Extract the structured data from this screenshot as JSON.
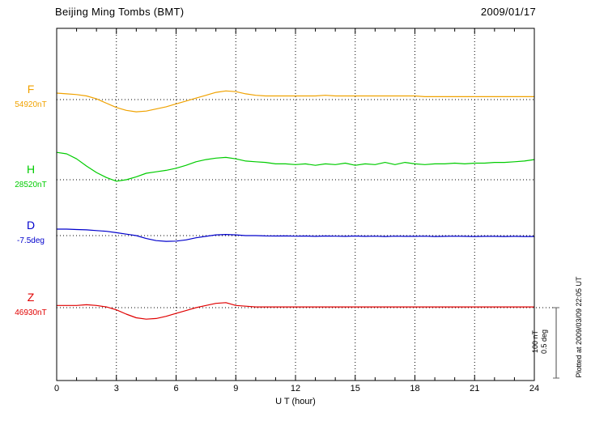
{
  "header": {
    "station": "Beijing Ming Tombs (BMT)",
    "date": "2009/01/17"
  },
  "x_axis": {
    "label": "U T (hour)"
  },
  "scale_bar": {
    "line1": "100 nT",
    "line2": "0.5 deg"
  },
  "footer": {
    "plotted_at": "Plotted at 2009/03/09 22:05 UT"
  },
  "chart_data": {
    "type": "line",
    "title": "Beijing Ming Tombs (BMT)",
    "subtitle": "2009/01/17",
    "xlabel": "U T (hour)",
    "x_range": [
      0,
      24
    ],
    "x_ticks": [
      0,
      3,
      6,
      9,
      12,
      15,
      18,
      21,
      24
    ],
    "x_step_hours": 0.5,
    "grid": "dotted vertical lines every 3 hours; dotted horizontal baseline per channel",
    "legend": "none",
    "scale": {
      "bar_nT": 100,
      "bar_deg": 0.5
    },
    "series": [
      {
        "name": "F",
        "unit": "nT",
        "baseline": 54920,
        "baseline_label": "54920nT",
        "color": "#f0a200",
        "offsets": [
          9,
          8,
          7,
          5,
          1,
          -5,
          -11,
          -15,
          -17,
          -16,
          -13,
          -10,
          -6,
          -2,
          2,
          6,
          10,
          12,
          11,
          8,
          6,
          5,
          5,
          5,
          5,
          5,
          5,
          6,
          5,
          5,
          5,
          5,
          5,
          5,
          5,
          5,
          5,
          4,
          4,
          4,
          4,
          4,
          4,
          4,
          4,
          4,
          4,
          4,
          4
        ]
      },
      {
        "name": "H",
        "unit": "nT",
        "baseline": 28520,
        "baseline_label": "28520nT",
        "color": "#00cc00",
        "offsets": [
          38,
          36,
          29,
          19,
          10,
          3,
          -2,
          0,
          4,
          9,
          11,
          13,
          16,
          20,
          25,
          28,
          30,
          31,
          29,
          26,
          25,
          24,
          22,
          22,
          21,
          22,
          20,
          22,
          21,
          23,
          20,
          22,
          21,
          24,
          21,
          24,
          22,
          21,
          22,
          22,
          23,
          22,
          23,
          23,
          24,
          24,
          25,
          26,
          28
        ]
      },
      {
        "name": "D",
        "unit": "deg",
        "baseline": -7.5,
        "baseline_label": "-7.5deg",
        "color": "#0000cc",
        "offsets": [
          0.045,
          0.045,
          0.042,
          0.04,
          0.035,
          0.03,
          0.02,
          0.01,
          0.0,
          -0.02,
          -0.035,
          -0.04,
          -0.038,
          -0.03,
          -0.015,
          -0.005,
          0.005,
          0.008,
          0.005,
          0.0,
          0.0,
          -0.002,
          -0.003,
          -0.002,
          -0.004,
          -0.003,
          -0.005,
          -0.003,
          -0.004,
          -0.005,
          -0.003,
          -0.005,
          -0.004,
          -0.006,
          -0.004,
          -0.005,
          -0.005,
          -0.004,
          -0.006,
          -0.005,
          -0.004,
          -0.005,
          -0.006,
          -0.005,
          -0.005,
          -0.006,
          -0.005,
          -0.006,
          -0.006
        ]
      },
      {
        "name": "Z",
        "unit": "nT",
        "baseline": 46930,
        "baseline_label": "46930nT",
        "color": "#e00000",
        "offsets": [
          3,
          3,
          3,
          4,
          3,
          1,
          -3,
          -9,
          -14,
          -16,
          -15,
          -12,
          -8,
          -4,
          0,
          3,
          6,
          7,
          3,
          2,
          1,
          1,
          1,
          1,
          1,
          1,
          1,
          1,
          1,
          1,
          1,
          1,
          1,
          1,
          1,
          1,
          1,
          1,
          1,
          1,
          1,
          1,
          1,
          1,
          1,
          1,
          1,
          1,
          1
        ]
      }
    ]
  }
}
